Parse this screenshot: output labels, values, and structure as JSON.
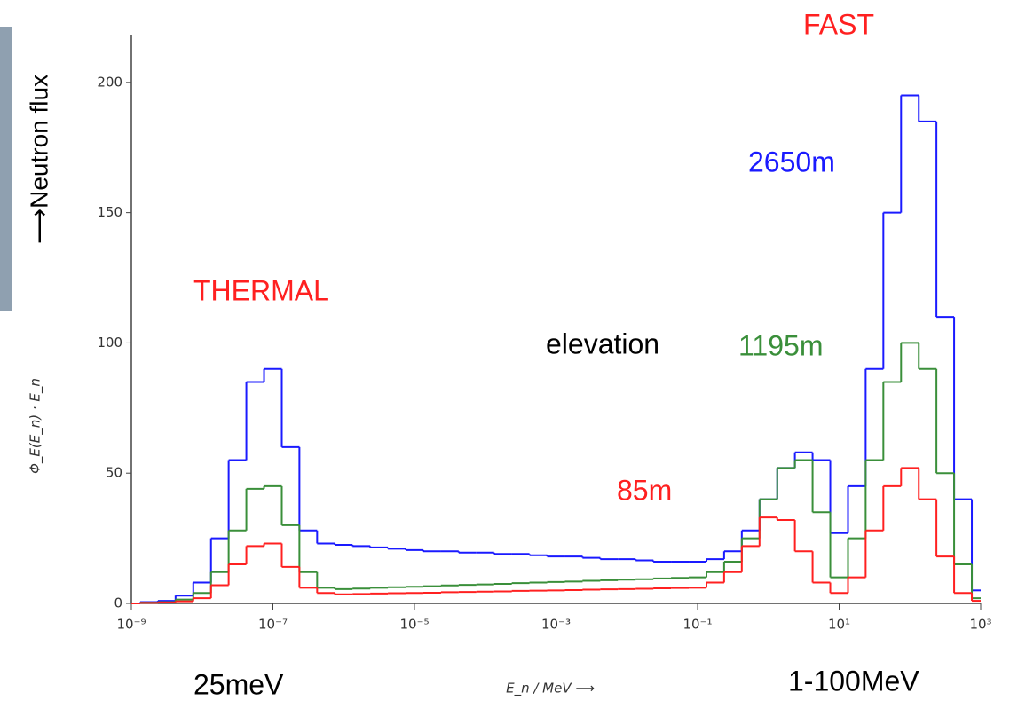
{
  "chart_data": {
    "type": "step",
    "ylabel": "Φ_E(E_n) · E_n",
    "xlabel": "E_n / MeV ⟶",
    "log_x": true,
    "xlim": [
      1e-09,
      1000
    ],
    "ylim": [
      0,
      218
    ],
    "xticks": [
      {
        "value": 1e-09,
        "label": "10⁻⁹"
      },
      {
        "value": 1e-07,
        "label": "10⁻⁷"
      },
      {
        "value": 1e-05,
        "label": "10⁻⁵"
      },
      {
        "value": 0.001,
        "label": "10⁻³"
      },
      {
        "value": 0.1,
        "label": "10⁻¹"
      },
      {
        "value": 10,
        "label": "10¹"
      },
      {
        "value": 1000,
        "label": "10³"
      }
    ],
    "yticks": [
      0,
      50,
      100,
      150,
      200
    ],
    "x": [
      1e-09,
      1.78e-09,
      3.16e-09,
      5.62e-09,
      1e-08,
      1.78e-08,
      3.16e-08,
      5.62e-08,
      1e-07,
      1.78e-07,
      3.16e-07,
      5.62e-07,
      1e-06,
      1.78e-06,
      3.16e-06,
      5.62e-06,
      1e-05,
      1.78e-05,
      3.16e-05,
      5.62e-05,
      0.0001,
      0.000178,
      0.000316,
      0.000562,
      0.001,
      0.00178,
      0.00316,
      0.00562,
      0.01,
      0.0178,
      0.0316,
      0.0562,
      0.1,
      0.178,
      0.316,
      0.562,
      1,
      1.78,
      3.16,
      5.62,
      10,
      17.8,
      31.6,
      56.2,
      100,
      178,
      316,
      562,
      1000
    ],
    "series": [
      {
        "name": "2650m",
        "color": "#1a1aff",
        "values": [
          0,
          0.5,
          1,
          3,
          8,
          25,
          55,
          85,
          90,
          60,
          28,
          23,
          22.5,
          22,
          21.5,
          21,
          20.5,
          20,
          20,
          19.5,
          19.5,
          19,
          19,
          18.5,
          18,
          18,
          17.5,
          17,
          17,
          16.5,
          16,
          16,
          16,
          17,
          20,
          28,
          40,
          52,
          58,
          55,
          27,
          45,
          90,
          150,
          195,
          185,
          110,
          40,
          5
        ]
      },
      {
        "name": "1195m",
        "color": "#3a8f3a",
        "values": [
          0,
          0.3,
          0.5,
          1.5,
          4,
          12,
          28,
          44,
          45,
          30,
          12,
          6,
          5.5,
          5.7,
          6,
          6.2,
          6.4,
          6.6,
          6.9,
          7.1,
          7.3,
          7.5,
          7.8,
          8,
          8.2,
          8.4,
          8.7,
          8.9,
          9.1,
          9.3,
          9.6,
          9.8,
          10,
          12,
          16,
          25,
          40,
          52,
          55,
          35,
          10,
          25,
          55,
          85,
          100,
          90,
          50,
          15,
          2
        ]
      },
      {
        "name": "85m",
        "color": "#ff2020",
        "values": [
          0,
          0.2,
          0.4,
          0.8,
          2,
          7,
          15,
          22,
          23,
          14,
          6,
          4,
          3.5,
          3.6,
          3.8,
          3.9,
          4,
          4.1,
          4.3,
          4.4,
          4.5,
          4.6,
          4.8,
          4.9,
          5,
          5.1,
          5.3,
          5.4,
          5.5,
          5.6,
          5.8,
          5.9,
          6,
          8,
          12,
          22,
          33,
          32,
          20,
          8,
          4,
          10,
          28,
          45,
          52,
          40,
          18,
          4,
          1
        ]
      }
    ],
    "annotations": [
      {
        "text": "FAST",
        "color": "#ff2020"
      },
      {
        "text": "THERMAL",
        "color": "#ff2020"
      },
      {
        "text": "elevation",
        "color": "#000000"
      },
      {
        "text": "25meV",
        "color": "#000000"
      },
      {
        "text": "1-100MeV",
        "color": "#000000"
      },
      {
        "text": "⟶Neutron flux",
        "color": "#000000"
      }
    ]
  }
}
